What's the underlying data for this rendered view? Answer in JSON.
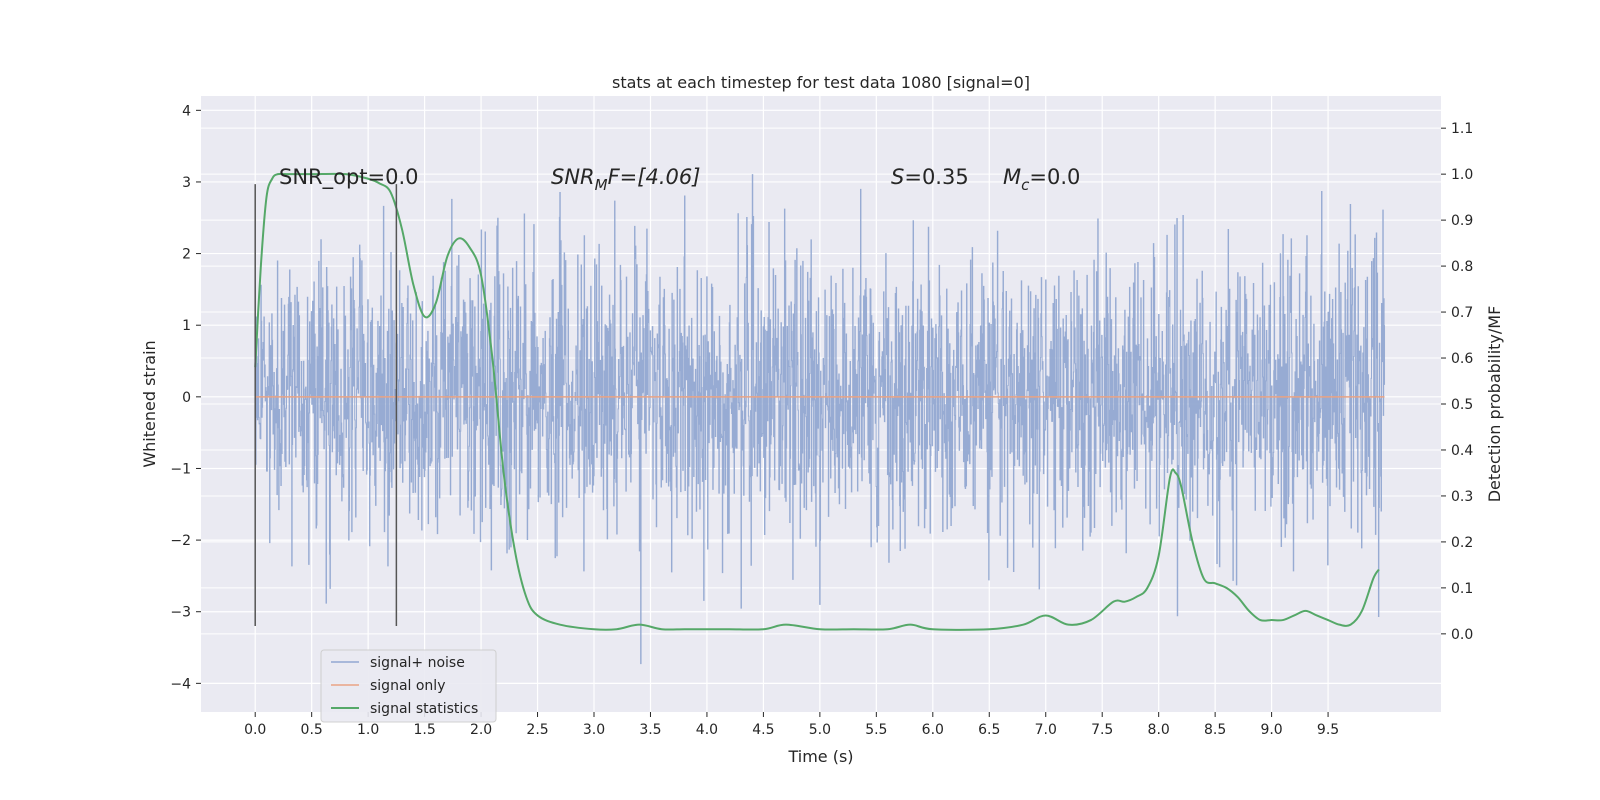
{
  "chart_data": {
    "type": "line",
    "title": "stats at each timestep for test data 1080 [signal=0]",
    "xlabel": "Time (s)",
    "ylabel": "Whitened strain",
    "y2label": "Detection probability/MF",
    "xlim": [
      -0.48,
      10.5
    ],
    "ylim": [
      -4.4,
      4.2
    ],
    "y2lim": [
      -0.17,
      1.17
    ],
    "x_ticks": [
      "0.0",
      "0.5",
      "1.0",
      "1.5",
      "2.0",
      "2.5",
      "3.0",
      "3.5",
      "4.0",
      "4.5",
      "5.0",
      "5.5",
      "6.0",
      "6.5",
      "7.0",
      "7.5",
      "8.0",
      "8.5",
      "9.0",
      "9.5"
    ],
    "y_ticks": [
      "−4",
      "−3",
      "−2",
      "−1",
      "0",
      "1",
      "2",
      "3",
      "4"
    ],
    "y2_ticks": [
      "0.0",
      "0.1",
      "0.2",
      "0.3",
      "0.4",
      "0.5",
      "0.6",
      "0.7",
      "0.8",
      "0.9",
      "1.0",
      "1.1"
    ],
    "grid": true,
    "legend_position": "lower-left",
    "series": [
      {
        "name": "signal+ noise",
        "color": "#92a8d1",
        "description_values": "dense noise, sample rate ~1000 Hz over 0–10 s, mostly within ±2, peaks to about ±3.8",
        "x_range": [
          0.0,
          10.0
        ],
        "amplitude_typical": 1.0,
        "amplitude_max": 3.8
      },
      {
        "name": "signal only",
        "color": "#e9a384",
        "x": [
          0.0,
          10.0
        ],
        "y": [
          0.0,
          0.0
        ]
      },
      {
        "name": "signal statistics",
        "color": "#55a868",
        "axis": "right",
        "x": [
          0.0,
          0.05,
          0.1,
          0.15,
          0.2,
          0.3,
          0.5,
          0.8,
          1.0,
          1.1,
          1.2,
          1.3,
          1.4,
          1.5,
          1.6,
          1.7,
          1.8,
          1.9,
          2.0,
          2.1,
          2.2,
          2.3,
          2.4,
          2.5,
          2.7,
          3.0,
          3.2,
          3.4,
          3.6,
          3.8,
          4.0,
          4.2,
          4.5,
          4.7,
          5.0,
          5.3,
          5.6,
          5.8,
          6.0,
          6.5,
          6.8,
          7.0,
          7.2,
          7.4,
          7.6,
          7.7,
          7.8,
          7.9,
          8.0,
          8.1,
          8.15,
          8.2,
          8.3,
          8.4,
          8.5,
          8.6,
          8.7,
          8.8,
          8.9,
          9.0,
          9.1,
          9.2,
          9.3,
          9.4,
          9.5,
          9.6,
          9.7,
          9.8,
          9.9,
          9.95
        ],
        "y": [
          0.58,
          0.8,
          0.95,
          0.99,
          1.0,
          1.0,
          1.0,
          1.0,
          0.99,
          0.98,
          0.96,
          0.88,
          0.76,
          0.69,
          0.72,
          0.82,
          0.86,
          0.84,
          0.78,
          0.6,
          0.35,
          0.18,
          0.08,
          0.04,
          0.02,
          0.01,
          0.01,
          0.02,
          0.01,
          0.01,
          0.01,
          0.01,
          0.01,
          0.02,
          0.01,
          0.01,
          0.01,
          0.02,
          0.01,
          0.01,
          0.02,
          0.04,
          0.02,
          0.03,
          0.07,
          0.07,
          0.08,
          0.1,
          0.17,
          0.34,
          0.35,
          0.32,
          0.2,
          0.12,
          0.11,
          0.1,
          0.08,
          0.05,
          0.03,
          0.03,
          0.03,
          0.04,
          0.05,
          0.04,
          0.03,
          0.02,
          0.02,
          0.05,
          0.12,
          0.14
        ]
      }
    ],
    "vertical_lines": [
      0.0,
      1.25
    ],
    "annotations": {
      "snr_opt": "SNR_opt=0.0",
      "snr_mf_main": "SNR",
      "snr_mf_sub": "M",
      "snr_mf_rest": "F=[4.06]",
      "s_main": "S",
      "s_rest": "=0.35",
      "mc_main": "M",
      "mc_sub": "c",
      "mc_rest": "=0.0"
    }
  },
  "colors": {
    "plot_background": "#eaeaf2",
    "grid": "#ffffff",
    "text": "#262626",
    "vline": "#555555"
  }
}
